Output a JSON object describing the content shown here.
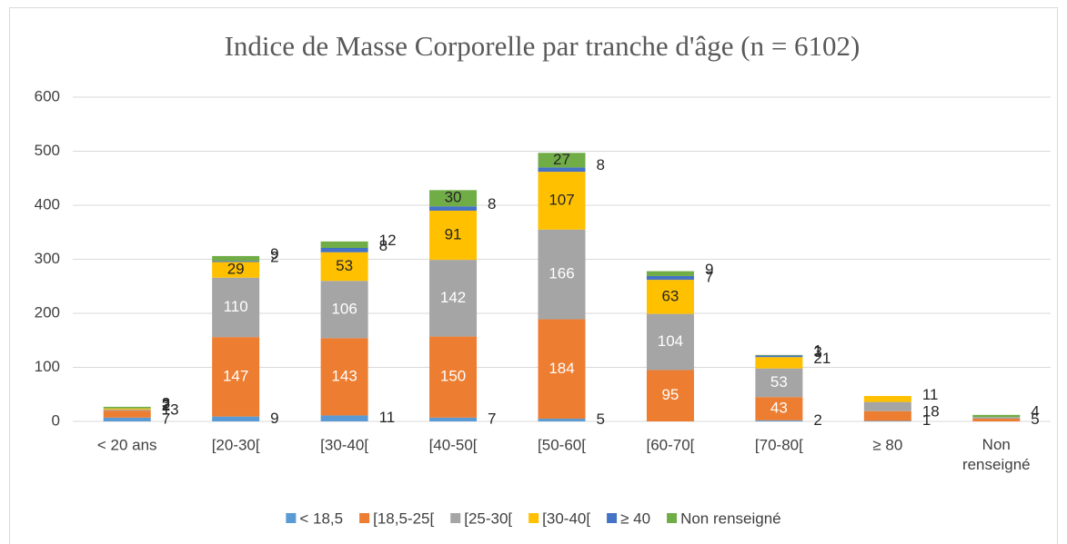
{
  "chart_data": {
    "type": "stacked_bar",
    "title": "Indice de Masse Corporelle par tranche d'âge (n = 6102)",
    "categories": [
      "< 20 ans",
      "[20-30[",
      "[30-40[",
      "[40-50[",
      "[50-60[",
      "[60-70[",
      "[70-80[",
      "≥ 80",
      "Non renseigné"
    ],
    "series": [
      {
        "name": "< 18,5",
        "color": "#5b9bd5",
        "values": [
          7,
          9,
          11,
          7,
          5,
          null,
          2,
          1,
          null
        ]
      },
      {
        "name": "[18,5-25[",
        "color": "#ed7d31",
        "values": [
          13,
          147,
          143,
          150,
          184,
          95,
          43,
          18,
          5
        ]
      },
      {
        "name": "[25-30[",
        "color": "#a5a5a5",
        "values": [
          2,
          110,
          106,
          142,
          166,
          104,
          53,
          17,
          3
        ],
        "value_labels": [
          "2",
          "110",
          "106",
          "142",
          "166",
          "104",
          "53",
          null,
          null
        ]
      },
      {
        "name": "[30-40[",
        "color": "#ffc000",
        "values": [
          2,
          29,
          53,
          91,
          107,
          63,
          21,
          11,
          null
        ]
      },
      {
        "name": "≥ 40",
        "color": "#4472c4",
        "values": [
          null,
          2,
          8,
          8,
          8,
          7,
          3,
          null,
          null
        ]
      },
      {
        "name": "Non renseigné",
        "color": "#70ad47",
        "values": [
          3,
          9,
          12,
          30,
          27,
          9,
          1,
          null,
          4
        ]
      }
    ],
    "ylim": [
      0,
      600
    ],
    "yticks": [
      0,
      100,
      200,
      300,
      400,
      500,
      600
    ],
    "grid": true,
    "legend": "bottom"
  }
}
